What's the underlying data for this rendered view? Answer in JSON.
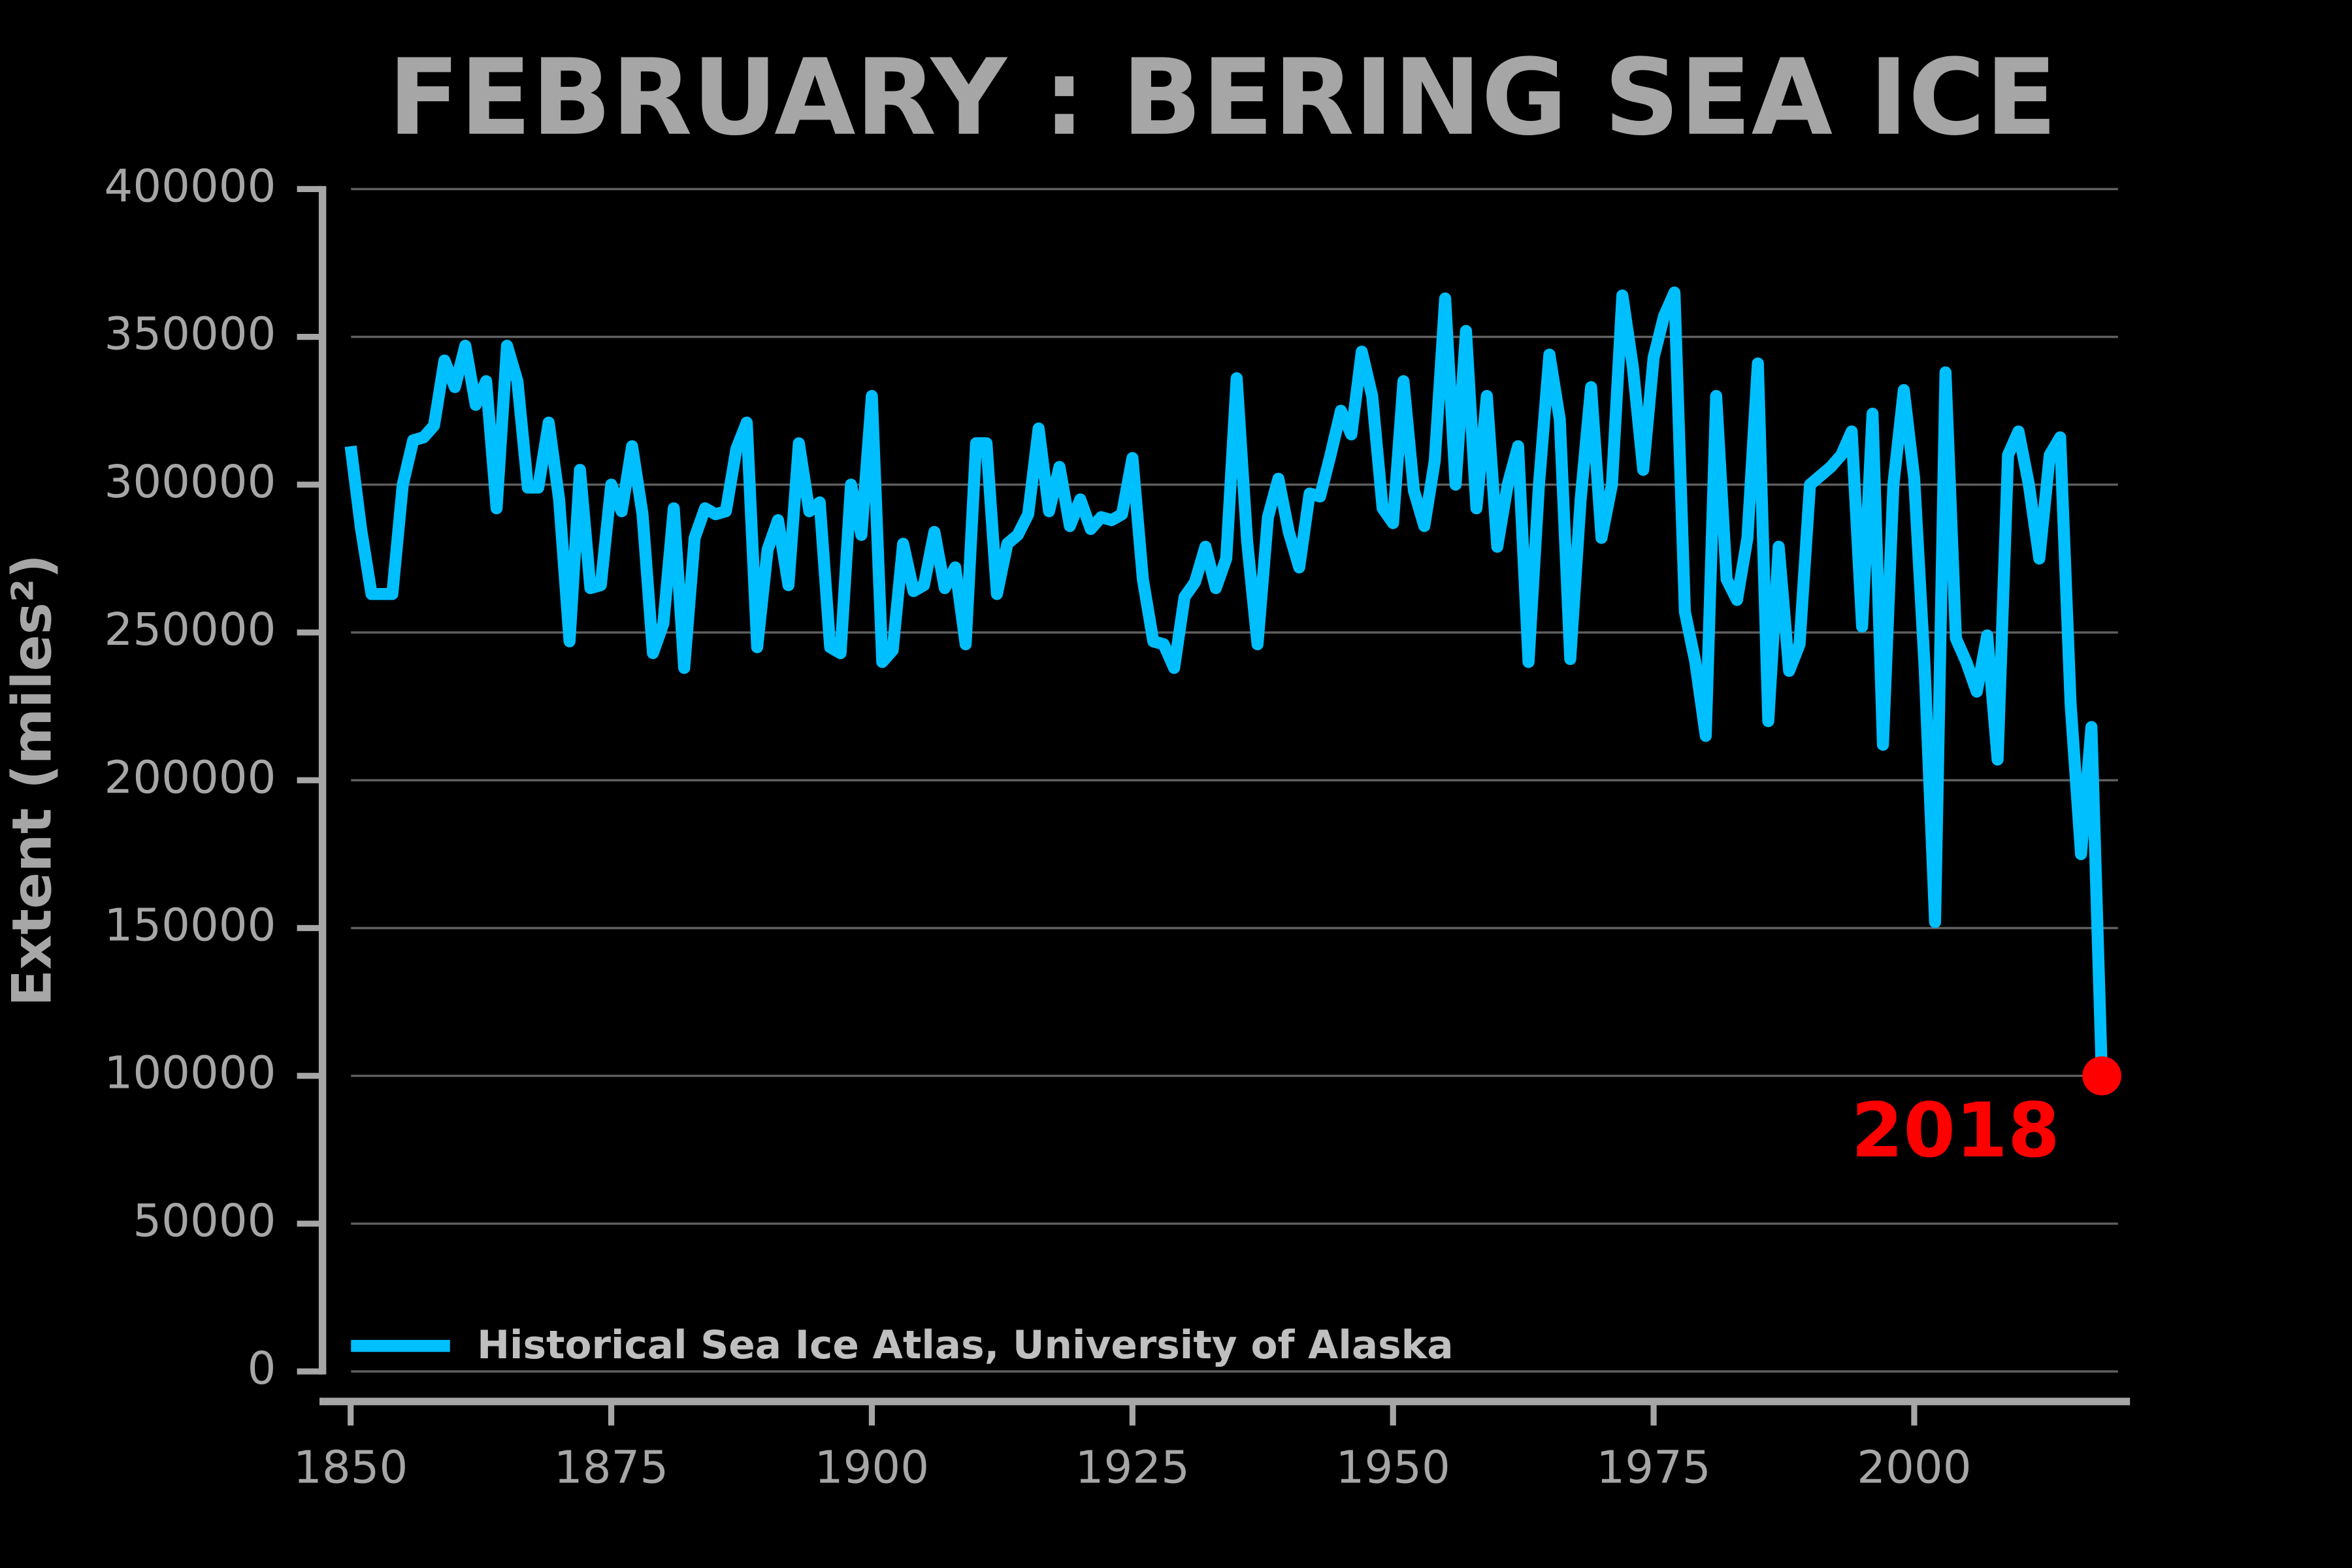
{
  "chart_data": {
    "type": "line",
    "title": "FEBRUARY : BERING SEA ICE",
    "y_label": "Extent (miles²)",
    "x": [
      1850,
      1851,
      1852,
      1853,
      1854,
      1855,
      1856,
      1857,
      1858,
      1859,
      1860,
      1861,
      1862,
      1863,
      1864,
      1865,
      1866,
      1867,
      1868,
      1869,
      1870,
      1871,
      1872,
      1873,
      1874,
      1875,
      1876,
      1877,
      1878,
      1879,
      1880,
      1881,
      1882,
      1883,
      1884,
      1885,
      1886,
      1887,
      1888,
      1889,
      1890,
      1891,
      1892,
      1893,
      1894,
      1895,
      1896,
      1897,
      1898,
      1899,
      1900,
      1901,
      1902,
      1903,
      1904,
      1905,
      1906,
      1907,
      1908,
      1909,
      1910,
      1911,
      1912,
      1913,
      1914,
      1915,
      1916,
      1917,
      1918,
      1919,
      1920,
      1921,
      1922,
      1923,
      1924,
      1925,
      1926,
      1927,
      1928,
      1929,
      1930,
      1931,
      1932,
      1933,
      1934,
      1935,
      1936,
      1937,
      1938,
      1939,
      1940,
      1941,
      1942,
      1943,
      1944,
      1945,
      1946,
      1947,
      1948,
      1949,
      1950,
      1951,
      1952,
      1953,
      1954,
      1955,
      1956,
      1957,
      1958,
      1959,
      1960,
      1961,
      1962,
      1963,
      1964,
      1965,
      1966,
      1967,
      1968,
      1969,
      1970,
      1971,
      1972,
      1973,
      1974,
      1975,
      1976,
      1977,
      1978,
      1979,
      1980,
      1981,
      1982,
      1983,
      1984,
      1985,
      1986,
      1987,
      1988,
      1989,
      1990,
      1991,
      1992,
      1993,
      1994,
      1995,
      1996,
      1997,
      1998,
      1999,
      2000,
      2001,
      2002,
      2003,
      2004,
      2005,
      2006,
      2007,
      2008,
      2009,
      2010,
      2011,
      2012,
      2013,
      2014,
      2015,
      2016,
      2017,
      2018
    ],
    "series": [
      {
        "name": "Historical Sea Ice Atlas, University of Alaska",
        "color": "#00bfff",
        "values": [
          313000,
          285000,
          263000,
          263000,
          263000,
          300000,
          315000,
          316000,
          320000,
          342000,
          333000,
          347000,
          327000,
          335000,
          292000,
          347000,
          335000,
          299000,
          299000,
          321000,
          295000,
          247000,
          305000,
          265000,
          266000,
          300000,
          291000,
          313000,
          290000,
          243000,
          253000,
          292000,
          238000,
          282000,
          292000,
          290000,
          291000,
          312000,
          321000,
          245000,
          278000,
          288000,
          266000,
          314000,
          291000,
          294000,
          245000,
          243000,
          300000,
          283000,
          330000,
          240000,
          244000,
          280000,
          264000,
          266000,
          284000,
          265000,
          272000,
          246000,
          314000,
          314000,
          263000,
          280000,
          283000,
          290000,
          319000,
          291000,
          306000,
          286000,
          295000,
          285000,
          289000,
          288000,
          290000,
          309000,
          268000,
          247000,
          246000,
          238000,
          262000,
          267000,
          279000,
          265000,
          275000,
          336000,
          281000,
          246000,
          289000,
          302000,
          284000,
          272000,
          297000,
          296000,
          310000,
          325000,
          317000,
          345000,
          330000,
          292000,
          287000,
          335000,
          298000,
          286000,
          308000,
          363000,
          300000,
          352000,
          292000,
          330000,
          279000,
          300000,
          313000,
          240000,
          300000,
          344000,
          322000,
          241000,
          295000,
          333000,
          282000,
          300000,
          364000,
          340000,
          305000,
          343000,
          357000,
          365000,
          257000,
          240000,
          215000,
          330000,
          268000,
          261000,
          282000,
          341000,
          220000,
          279000,
          237000,
          246000,
          300000,
          303000,
          306000,
          310000,
          318000,
          252000,
          324000,
          212000,
          300000,
          332000,
          302000,
          238000,
          152000,
          338000,
          248000,
          240000,
          230000,
          249000,
          207000,
          310000,
          318000,
          300000,
          275000,
          310000,
          316000,
          226000,
          175000,
          218000,
          100000
        ]
      }
    ],
    "highlight": {
      "label": "2018",
      "color": "#ff0000"
    },
    "xlim": [
      1847.3,
      2020.7
    ],
    "xticks": [
      1850,
      1875,
      1900,
      1925,
      1950,
      1975,
      2000
    ],
    "ylim": [
      0,
      400000
    ],
    "yticks": [
      0,
      50000,
      100000,
      150000,
      200000,
      250000,
      300000,
      350000,
      400000
    ],
    "grid": true,
    "legend": "lower left"
  }
}
